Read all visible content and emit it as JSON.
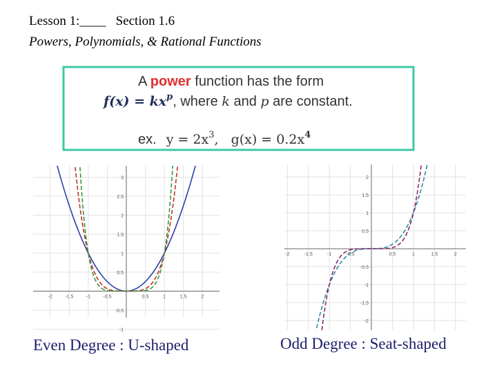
{
  "header": {
    "line1": "Lesson 1:____   Section 1.6",
    "line2": "Powers, Polynomials, & Rational Functions"
  },
  "box": {
    "line1": [
      "A ",
      "power",
      " function has the form"
    ],
    "line2": [
      "f(x) = kx",
      "p",
      ", where ",
      "k",
      " and ",
      "p",
      " are constant."
    ],
    "line3": [
      "ex.",
      "y = 2x",
      "3",
      ",",
      "g(x) = 0.2x",
      "4"
    ]
  },
  "graphs": [
    {
      "xlim": [
        -2.45,
        2.45
      ],
      "ylim": [
        -0.7,
        3.3
      ],
      "xticks": [
        -2,
        -1.5,
        -1,
        -0.5,
        0.5,
        1,
        1.5,
        2
      ],
      "yticks": [
        -1,
        -0.5,
        0.5,
        1,
        1.5,
        2,
        2.5,
        3
      ],
      "caption": "Even Degree : U-shaped"
    },
    {
      "xlim": [
        -2.07,
        2.25
      ],
      "ylim": [
        -2.27,
        2.35
      ],
      "xticks": [
        -2,
        -1.5,
        -1,
        -0.5,
        0.5,
        1,
        1.5,
        2
      ],
      "yticks": [
        -2,
        -1.5,
        -1,
        -0.5,
        0.5,
        1,
        1.5,
        2
      ],
      "caption": "Odd Degree : Seat-shaped"
    }
  ]
}
